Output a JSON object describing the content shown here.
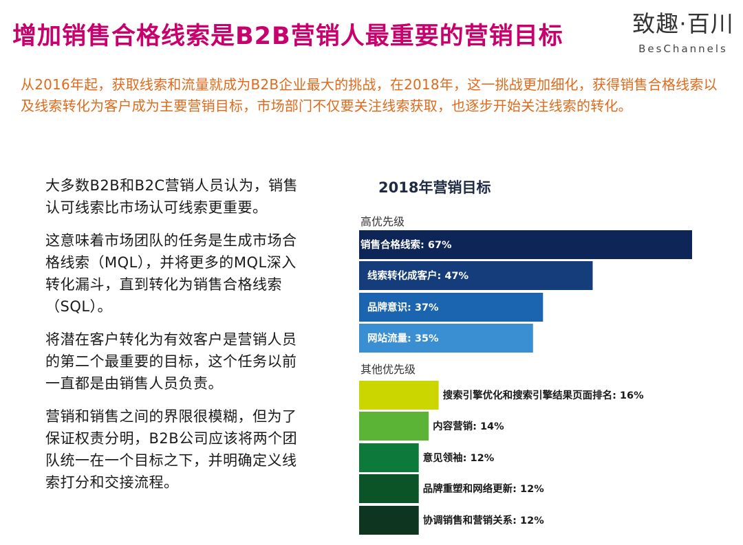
{
  "header": {
    "title": "增加销售合格线索是B2B营销人最重要的营销目标",
    "title_color": "#c8006e",
    "logo_cn": "致趣·百川",
    "logo_en": "BesChannels"
  },
  "intro": {
    "text": "从2016年起，获取线索和流量就成为B2B企业最大的挑战，在2018年，这一挑战更加细化，获得销售合格线索以及线索转化为客户成为主要营销目标，市场部门不仅要关注线索获取，也逐步开始关注线索的转化。",
    "color": "#e06a1b"
  },
  "body": {
    "paragraphs": [
      "大多数B2B和B2C营销人员认为，销售认可线索比市场认可线索更重要。",
      "这意味着市场团队的任务是生成市场合格线索（MQL），并将更多的MQL深入转化漏斗，直到转化为销售合格线索（SQL）。",
      "将潜在客户转化为有效客户是营销人员的第二个最重要的目标，这个任务以前一直都是由销售人员负责。",
      "营销和销售之间的界限很模糊，但为了保证权责分明，B2B公司应该将两个团队统一在一个目标之下，并明确定义线索打分和交接流程。"
    ]
  },
  "chart_data": {
    "type": "bar",
    "orientation": "horizontal",
    "title": "2018年营销目标",
    "unit": "%",
    "xlim": [
      0,
      67
    ],
    "groups": [
      {
        "name": "高优先级",
        "label_position": "inside",
        "bars": [
          {
            "label": "销售合格线索",
            "value": 67,
            "text": "销售合格线索: 67%",
            "color": "#0d2557"
          },
          {
            "label": "线索转化成客户",
            "value": 47,
            "text": "线索转化成客户:  47%",
            "color": "#153d7c"
          },
          {
            "label": "品牌意识",
            "value": 37,
            "text": "品牌意识: 37%",
            "color": "#1b64b0"
          },
          {
            "label": "网站流量",
            "value": 35,
            "text": "网站流量: 35%",
            "color": "#3a8fd2"
          }
        ]
      },
      {
        "name": "其他优先级",
        "label_position": "outside",
        "bars": [
          {
            "label": "搜索引擎优化和搜索引擎结果页面排名",
            "value": 16,
            "text": "搜索引擎优化和搜索引擎结果页面排名: 16%",
            "color": "#cbd500"
          },
          {
            "label": "内容营销",
            "value": 14,
            "text": "内容营销: 14%",
            "color": "#5bb436"
          },
          {
            "label": "意见领袖",
            "value": 12,
            "text": "意见领袖: 12%",
            "color": "#0d7a3c"
          },
          {
            "label": "品牌重塑和网络更新",
            "value": 12,
            "text": "品牌重塑和网络更新: 12%",
            "color": "#0b5428"
          },
          {
            "label": "协调销售和营销关系",
            "value": 12,
            "text": "协调销售和营销关系: 12%",
            "color": "#0e3520"
          }
        ]
      }
    ]
  }
}
